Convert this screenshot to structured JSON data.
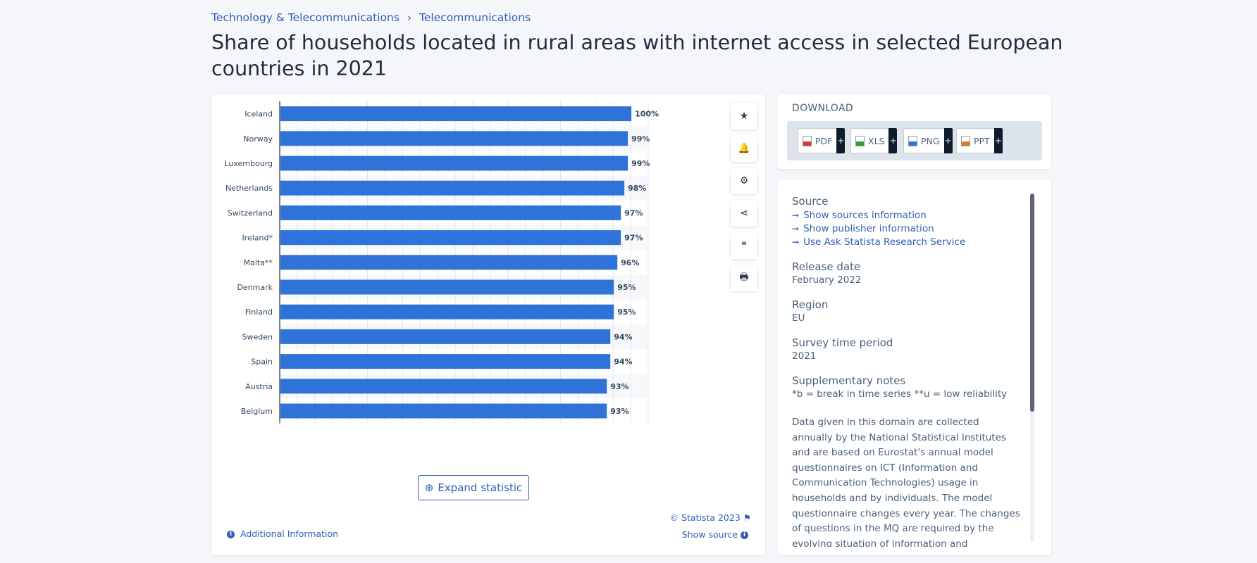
{
  "breadcrumb": {
    "category": "Technology & Telecommunications",
    "separator": "›",
    "subcategory": "Telecommunications"
  },
  "title": "Share of households located in rural areas with internet access in selected European countries in 2021",
  "chart_data": {
    "type": "bar",
    "orientation": "horizontal",
    "categories": [
      "Iceland",
      "Norway",
      "Luxembourg",
      "Netherlands",
      "Switzerland",
      "Ireland*",
      "Malta**",
      "Denmark",
      "Finland",
      "Sweden",
      "Spain",
      "Austria",
      "Belgium"
    ],
    "values": [
      100,
      99,
      99,
      98,
      97,
      97,
      96,
      95,
      95,
      94,
      94,
      93,
      93
    ],
    "data_labels": [
      "100%",
      "99%",
      "99%",
      "98%",
      "97%",
      "97%",
      "96%",
      "95%",
      "95%",
      "94%",
      "94%",
      "93%",
      "93%"
    ],
    "xlim": [
      0,
      105
    ],
    "grid": true,
    "bar_color": "#2f73d9"
  },
  "tools": [
    {
      "name": "star-icon",
      "glyph": "★"
    },
    {
      "name": "bell-icon",
      "glyph": "🔔"
    },
    {
      "name": "gear-icon",
      "glyph": "⚙"
    },
    {
      "name": "share-icon",
      "glyph": "⋖"
    },
    {
      "name": "quote-icon",
      "glyph": "❝"
    },
    {
      "name": "print-icon",
      "glyph": "🖶"
    }
  ],
  "expand_label": "Expand statistic",
  "copyright": "© Statista 2023",
  "show_source": "Show source",
  "additional_info": "Additional Information",
  "download": {
    "title": "DOWNLOAD",
    "buttons": [
      {
        "label": "PDF",
        "plus": "+",
        "color": "#d83a3a"
      },
      {
        "label": "XLS",
        "plus": "+",
        "color": "#3a9a3a"
      },
      {
        "label": "PNG",
        "plus": "+",
        "color": "#2f73d9"
      },
      {
        "label": "PPT",
        "plus": "+",
        "color": "#e07a20"
      }
    ]
  },
  "info": {
    "source_label": "Source",
    "links": [
      "Show sources information",
      "Show publisher information",
      "Use Ask Statista Research Service"
    ],
    "release_label": "Release date",
    "release_value": "February 2022",
    "region_label": "Region",
    "region_value": "EU",
    "survey_label": "Survey time period",
    "survey_value": "2021",
    "notes_label": "Supplementary notes",
    "notes_value": "*b = break in time series **u = low reliability",
    "description": "Data given in this domain are collected annually by the National Statistical Institutes and are based on Eurostat's annual model questionnaires on ICT (Information and Communication Technologies) usage in households and by individuals. The model questionnaire changes every year. The changes of questions in the MQ are required by the evolving situation of information and communication"
  }
}
